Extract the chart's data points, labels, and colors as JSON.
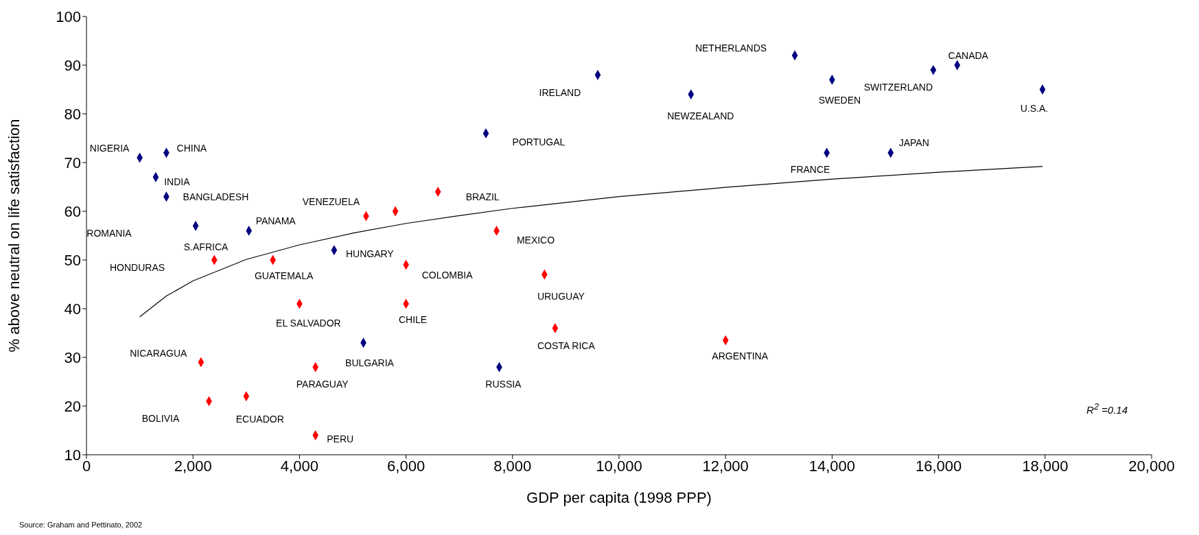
{
  "chart_data": {
    "type": "scatter",
    "xlabel": "GDP per capita (1998 PPP)",
    "ylabel": "% above neutral on life satisfaction",
    "xlim": [
      0,
      20000
    ],
    "xticks": [
      {
        "value": 0,
        "label": "0"
      },
      {
        "value": 2000,
        "label": "2,000"
      },
      {
        "value": 4000,
        "label": "4,000"
      },
      {
        "value": 6000,
        "label": "6,000"
      },
      {
        "value": 8000,
        "label": "8,000"
      },
      {
        "value": 10000,
        "label": "10,000"
      },
      {
        "value": 12000,
        "label": "12,000"
      },
      {
        "value": 14000,
        "label": "14,000"
      },
      {
        "value": 16000,
        "label": "16,000"
      },
      {
        "value": 18000,
        "label": "18,000"
      },
      {
        "value": 20000,
        "label": "20,000"
      }
    ],
    "ylim": [
      10,
      100
    ],
    "yticks": [
      10,
      20,
      30,
      40,
      50,
      60,
      70,
      80,
      90,
      100
    ],
    "grid": false,
    "marker": "diamond",
    "series": [
      {
        "color": "#000080",
        "x": [
          1000,
          1500,
          1300,
          1500,
          2050,
          3050,
          4650,
          5200,
          7750,
          7500,
          9600,
          11350,
          13300,
          14000,
          13900,
          15100,
          15900,
          16350,
          17950
        ],
        "values": [
          71,
          72,
          67,
          63,
          57,
          56,
          52,
          33,
          28,
          76,
          88,
          84,
          92,
          87,
          72,
          72,
          89,
          90,
          85
        ]
      },
      {
        "color": "#ff0000",
        "x": [
          2400,
          3500,
          5250,
          5800,
          6600,
          7700,
          6000,
          8600,
          4000,
          6000,
          8800,
          2150,
          4300,
          2300,
          3000,
          4300,
          12000
        ],
        "values": [
          50,
          50,
          59,
          60,
          64,
          56,
          49,
          47,
          41,
          41,
          36,
          29,
          28,
          21,
          22,
          14,
          33.5
        ]
      },
      {
        "type": "line",
        "color": "#000000",
        "marker": "none",
        "line_style": "solid",
        "x": [
          1000,
          1500,
          2000,
          3000,
          4000,
          5000,
          6000,
          7000,
          8000,
          10000,
          12000,
          14000,
          16000,
          17950
        ],
        "values": [
          38.3,
          42.6,
          45.7,
          50.1,
          53.1,
          55.5,
          57.5,
          59.1,
          60.6,
          63.0,
          64.9,
          66.6,
          68.0,
          69.2
        ]
      }
    ],
    "annotations": [
      {
        "text": "NIGERIA",
        "x": 1000,
        "y": 71
      },
      {
        "text": "CHINA",
        "x": 1500,
        "y": 72
      },
      {
        "text": "INDIA",
        "x": 1300,
        "y": 67
      },
      {
        "text": "BANGLADESH",
        "x": 1500,
        "y": 63
      },
      "ROMANIA",
      {
        "text": "S.AFRICA",
        "x": 2050,
        "y": 57
      },
      {
        "text": "PANAMA",
        "x": 3050,
        "y": 56
      },
      "HONDURAS",
      {
        "text": "VENEZUELA",
        "x": 5250,
        "y": 59
      },
      {
        "text": "BRAZIL",
        "x": 6600,
        "y": 64
      },
      {
        "text": "PORTUGAL",
        "x": 7500,
        "y": 76
      },
      {
        "text": "GUATEMALA",
        "x": 3500,
        "y": 50
      },
      {
        "text": "HUNGARY",
        "x": 4650,
        "y": 52
      },
      {
        "text": "COLOMBIA",
        "x": 6000,
        "y": 49
      },
      {
        "text": "MEXICO",
        "x": 7700,
        "y": 56
      },
      {
        "text": "URUGUAY",
        "x": 8600,
        "y": 47
      },
      {
        "text": "EL SALVADOR",
        "x": 4000,
        "y": 41
      },
      {
        "text": "CHILE",
        "x": 6000,
        "y": 41
      },
      {
        "text": "COSTA RICA",
        "x": 8800,
        "y": 36
      },
      {
        "text": "NICARAGUA",
        "x": 2150,
        "y": 29
      },
      {
        "text": "BULGARIA",
        "x": 5200,
        "y": 33
      },
      {
        "text": "PARAGUAY",
        "x": 4300,
        "y": 28
      },
      {
        "text": "RUSSIA",
        "x": 7750,
        "y": 28
      },
      "BOLIVIA",
      {
        "text": "ECUADOR",
        "x": 3000,
        "y": 22
      },
      {
        "text": "PERU",
        "x": 4300,
        "y": 14
      },
      {
        "text": "ARGENTINA",
        "x": 12000,
        "y": 33.5
      },
      {
        "text": "IRELAND",
        "x": 9600,
        "y": 88
      },
      {
        "text": "NEWZEALAND",
        "x": 11350,
        "y": 84
      },
      "NETHERLANDS",
      {
        "text": "SWEDEN",
        "x": 14000,
        "y": 87
      },
      {
        "text": "FRANCE",
        "x": 13900,
        "y": 72
      },
      {
        "text": "JAPAN",
        "x": 15100,
        "y": 72
      },
      {
        "text": "SWITZERLAND",
        "x": 15900,
        "y": 89
      },
      {
        "text": "CANADA",
        "x": 16350,
        "y": 90
      },
      {
        "text": "U.S.A.",
        "x": 17950,
        "y": 85
      },
      "R$^{2}$ =0.14",
      "Source: Graham and Pettinato, 2002"
    ]
  }
}
